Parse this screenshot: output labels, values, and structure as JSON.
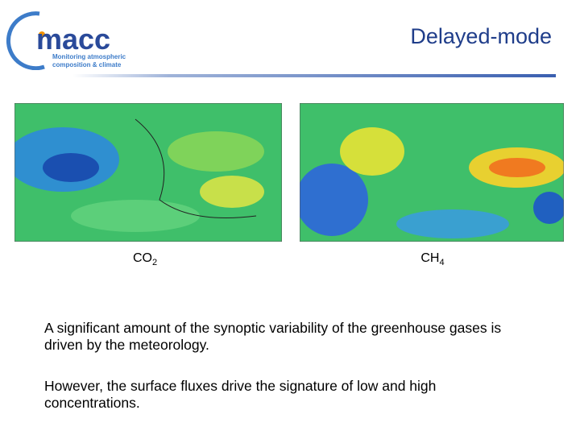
{
  "logo": {
    "name": "macc",
    "tagline": [
      "Monitoring atmospheric",
      "composition & climate"
    ]
  },
  "header": {
    "title": "Delayed-mode"
  },
  "figures": [
    {
      "label": "CO",
      "subscript": "2"
    },
    {
      "label": "CH",
      "subscript": "4"
    }
  ],
  "paragraphs": [
    "A significant amount of the synoptic variability of the greenhouse gases is driven by the meteorology.",
    "However, the surface fluxes drive the signature of low and high concentrations."
  ]
}
